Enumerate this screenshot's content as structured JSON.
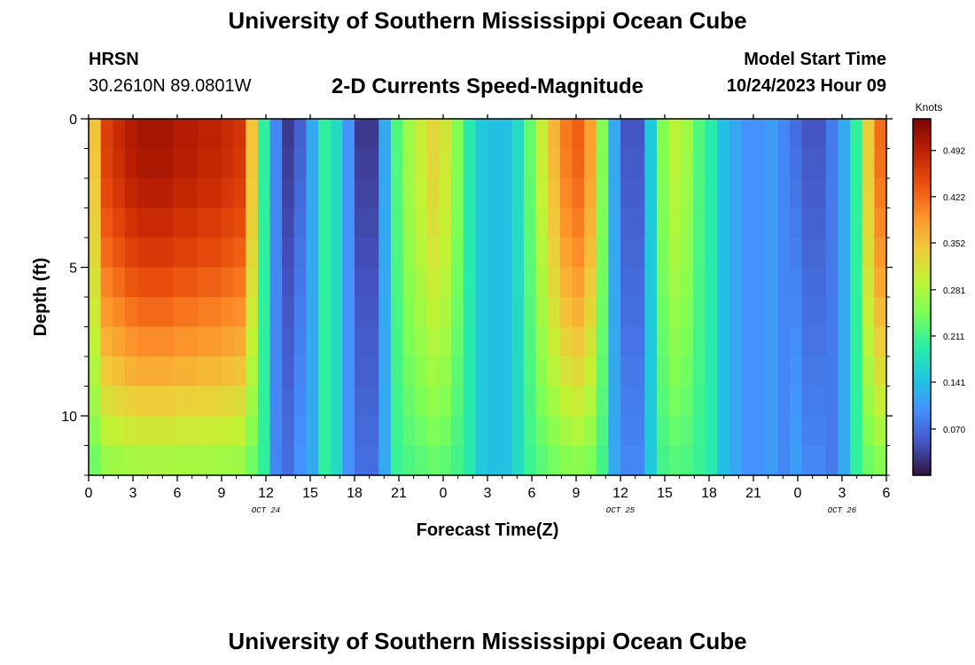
{
  "page": {
    "title": "University of Southern Mississippi Ocean Cube",
    "footer_title": "University of Southern Mississippi Ocean Cube",
    "station": "HRSN",
    "coordinates": "30.2610N  89.0801W",
    "subtitle": "2-D Currents Speed-Magnitude",
    "model_start_label": "Model Start Time",
    "model_start_value": "10/24/2023 Hour 09"
  },
  "chart_data": {
    "type": "heatmap",
    "title": "2-D Currents Speed-Magnitude",
    "xlabel": "Forecast Time(Z)",
    "ylabel": "Depth (ft)",
    "x_ticks": [
      "0",
      "3",
      "6",
      "9",
      "12",
      "15",
      "18",
      "21",
      "0",
      "3",
      "6",
      "9",
      "12",
      "15",
      "18",
      "21",
      "0",
      "3",
      "6"
    ],
    "x_tick_hours": [
      0,
      3,
      6,
      9,
      12,
      15,
      18,
      21,
      24,
      27,
      30,
      33,
      36,
      39,
      42,
      45,
      48,
      51,
      54
    ],
    "x_range_hours": [
      0,
      54
    ],
    "date_labels": [
      {
        "text": "OCT 24",
        "hour": 12
      },
      {
        "text": "OCT 25",
        "hour": 36
      },
      {
        "text": "OCT 26",
        "hour": 51
      }
    ],
    "y_ticks": [
      "0",
      "5",
      "10"
    ],
    "y_tick_values": [
      0,
      5,
      10
    ],
    "y_range": [
      0,
      12
    ],
    "depth_levels": 12,
    "colorbar": {
      "unit": "Knots",
      "min": 0.0,
      "max": 0.54,
      "ticks": [
        "0.492",
        "0.422",
        "0.352",
        "0.281",
        "0.211",
        "0.141",
        "0.070"
      ],
      "tick_values": [
        0.492,
        0.422,
        0.352,
        0.281,
        0.211,
        0.141,
        0.07
      ],
      "colormap": [
        "#30123b",
        "#4454c4",
        "#4490fe",
        "#1fc8de",
        "#29efa2",
        "#7dff56",
        "#c1f334",
        "#f1ca3a",
        "#fe922a",
        "#ea4f0d",
        "#be2102",
        "#7a0403"
      ]
    },
    "surface_speed_knots": [
      0.35,
      0.46,
      0.48,
      0.5,
      0.51,
      0.51,
      0.51,
      0.5,
      0.5,
      0.49,
      0.49,
      0.48,
      0.47,
      0.35,
      0.2,
      0.09,
      0.03,
      0.06,
      0.12,
      0.2,
      0.17,
      0.1,
      0.03,
      0.03,
      0.12,
      0.22,
      0.27,
      0.3,
      0.33,
      0.31,
      0.25,
      0.19,
      0.15,
      0.14,
      0.14,
      0.17,
      0.23,
      0.3,
      0.36,
      0.41,
      0.43,
      0.38,
      0.25,
      0.12,
      0.05,
      0.05,
      0.15,
      0.25,
      0.29,
      0.27,
      0.22,
      0.19,
      0.14,
      0.12,
      0.1,
      0.1,
      0.11,
      0.09,
      0.07,
      0.05,
      0.05,
      0.08,
      0.12,
      0.2,
      0.34,
      0.42
    ]
  }
}
